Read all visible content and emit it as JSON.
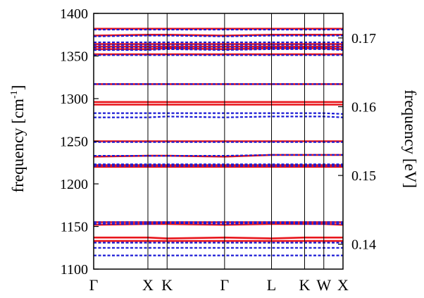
{
  "chart_data": {
    "type": "line",
    "title": "",
    "xlabel": "",
    "ylabel": "frequency [cm⁻¹]",
    "ylabel_base": "frequency [cm",
    "ylabel_sup": "-1",
    "ylabel_close": "]",
    "y2label": "frequency [eV]",
    "ylim": [
      1100,
      1400
    ],
    "y2lim_note": "right axis is the same frequency expressed in eV",
    "yticks": [
      1100,
      1150,
      1200,
      1250,
      1300,
      1350,
      1400
    ],
    "yticks_labels": [
      "1100",
      "1150",
      "1200",
      "1250",
      "1300",
      "1350",
      "1400"
    ],
    "y2ticks": [
      0.14,
      0.15,
      0.16,
      0.17
    ],
    "y2ticks_labels": [
      "0.14",
      "0.15",
      "0.16",
      "0.17"
    ],
    "ev_per_cm": 0.00012398,
    "x_points": [
      {
        "label": "Γ",
        "pos": 0.0
      },
      {
        "label": "X",
        "pos": 1.0
      },
      {
        "label": "K",
        "pos": 1.354
      },
      {
        "label": "Γ",
        "pos": 2.414
      },
      {
        "label": "L",
        "pos": 3.28
      },
      {
        "label": "K",
        "pos": 3.89
      },
      {
        "label": "W",
        "pos": 4.244
      },
      {
        "label": "X",
        "pos": 4.598
      }
    ],
    "grid": false,
    "legend": "none",
    "colors": {
      "series_a": "#e8151b",
      "series_b": "#1a1ad6",
      "axis": "#000000"
    },
    "series": [
      {
        "style": "solid",
        "color": "#e8151b",
        "bands": [
          [
            1133,
            1133,
            1133,
            1133,
            1133,
            1133,
            1133,
            1133
          ],
          [
            1137,
            1137,
            1136,
            1137,
            1136,
            1137,
            1137,
            1137
          ],
          [
            1152,
            1153,
            1153,
            1152,
            1153,
            1153,
            1153,
            1152
          ],
          [
            1155,
            1155,
            1155,
            1155,
            1155,
            1155,
            1155,
            1155
          ],
          [
            1220,
            1220,
            1220,
            1220,
            1220,
            1220,
            1220,
            1220
          ],
          [
            1222,
            1222,
            1222,
            1222,
            1222,
            1222,
            1222,
            1222
          ],
          [
            1232,
            1233,
            1233,
            1232,
            1234,
            1234,
            1234,
            1234
          ],
          [
            1250,
            1250,
            1250,
            1250,
            1250,
            1250,
            1250,
            1250
          ],
          [
            1293,
            1293,
            1293,
            1293,
            1293,
            1293,
            1293,
            1293
          ],
          [
            1296,
            1296,
            1296,
            1296,
            1296,
            1296,
            1296,
            1296
          ],
          [
            1317,
            1317,
            1317,
            1317,
            1317,
            1317,
            1317,
            1317
          ],
          [
            1352,
            1352,
            1352,
            1352,
            1352,
            1352,
            1352,
            1352
          ],
          [
            1358,
            1358,
            1359,
            1358,
            1359,
            1359,
            1359,
            1358
          ],
          [
            1361,
            1361,
            1361,
            1361,
            1361,
            1361,
            1361,
            1361
          ],
          [
            1364,
            1364,
            1364,
            1364,
            1364,
            1364,
            1364,
            1364
          ],
          [
            1374,
            1375,
            1375,
            1374,
            1375,
            1375,
            1375,
            1375
          ],
          [
            1382,
            1382,
            1382,
            1382,
            1382,
            1382,
            1382,
            1382
          ]
        ]
      },
      {
        "style": "dashed",
        "color": "#1a1ad6",
        "bands": [
          [
            1116,
            1116,
            1116,
            1116,
            1116,
            1116,
            1116,
            1116
          ],
          [
            1125,
            1125,
            1125,
            1125,
            1125,
            1125,
            1125,
            1125
          ],
          [
            1131,
            1131,
            1131,
            1131,
            1131,
            1131,
            1131,
            1131
          ],
          [
            1153,
            1153,
            1154,
            1153,
            1154,
            1153,
            1153,
            1153
          ],
          [
            1155,
            1155,
            1155,
            1155,
            1155,
            1155,
            1155,
            1155
          ],
          [
            1221,
            1221,
            1221,
            1221,
            1221,
            1221,
            1221,
            1221
          ],
          [
            1223,
            1223,
            1223,
            1223,
            1223,
            1223,
            1223,
            1223
          ],
          [
            1233,
            1233,
            1233,
            1233,
            1234,
            1234,
            1234,
            1234
          ],
          [
            1249,
            1249,
            1249,
            1249,
            1249,
            1249,
            1249,
            1249
          ],
          [
            1278,
            1278,
            1279,
            1278,
            1279,
            1279,
            1279,
            1278
          ],
          [
            1283,
            1283,
            1283,
            1283,
            1283,
            1283,
            1283,
            1282
          ],
          [
            1317,
            1317,
            1317,
            1317,
            1317,
            1317,
            1317,
            1317
          ],
          [
            1351,
            1351,
            1351,
            1351,
            1351,
            1351,
            1351,
            1351
          ],
          [
            1357,
            1357,
            1358,
            1357,
            1358,
            1358,
            1358,
            1357
          ],
          [
            1360,
            1360,
            1360,
            1360,
            1360,
            1360,
            1360,
            1360
          ],
          [
            1363,
            1363,
            1363,
            1363,
            1363,
            1363,
            1363,
            1363
          ],
          [
            1366,
            1366,
            1366,
            1366,
            1366,
            1366,
            1366,
            1366
          ],
          [
            1373,
            1374,
            1374,
            1373,
            1374,
            1374,
            1374,
            1374
          ],
          [
            1381,
            1381,
            1381,
            1381,
            1381,
            1381,
            1381,
            1381
          ]
        ]
      }
    ]
  }
}
